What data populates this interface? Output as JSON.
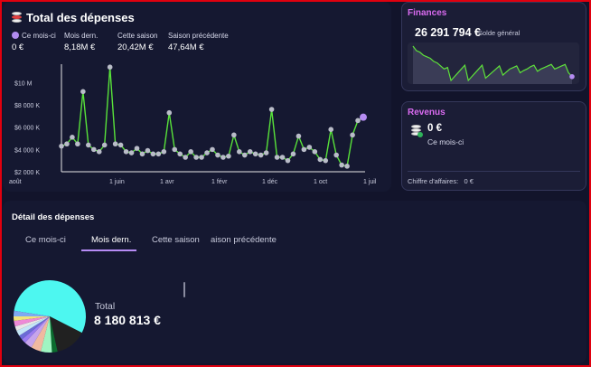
{
  "total": {
    "title": "Total des dépenses",
    "stats": [
      {
        "label": "Ce mois-ci",
        "value": "0 €"
      },
      {
        "label": "Mois dern.",
        "value": "8,18M €"
      },
      {
        "label": "Cette saison",
        "value": "20,42M €"
      },
      {
        "label": "Saison précédente",
        "value": "47,64M €"
      }
    ]
  },
  "chart_data": {
    "type": "line",
    "y_ticks": [
      "$10 M",
      "$8 000 K",
      "$6 000 K",
      "$4 000 K",
      "$2 000 K"
    ],
    "x_ticks": [
      "août",
      "1 juin",
      "1 avr",
      "1 févr",
      "1 déc",
      "1 oct",
      "1 juil"
    ],
    "ylim": [
      2000,
      11500
    ],
    "values": [
      4300,
      4500,
      5100,
      4500,
      9200,
      4400,
      4000,
      3800,
      4400,
      11400,
      4500,
      4400,
      3800,
      3700,
      4100,
      3600,
      3900,
      3600,
      3600,
      3800,
      7300,
      4000,
      3600,
      3300,
      3800,
      3300,
      3300,
      3700,
      4000,
      3500,
      3300,
      3400,
      5300,
      3800,
      3500,
      3800,
      3600,
      3500,
      3700,
      7600,
      3300,
      3300,
      3000,
      3600,
      5200,
      4000,
      4200,
      3800,
      3100,
      3000,
      5800,
      3500,
      2600,
      2500,
      5300,
      6600,
      6900
    ],
    "line_color": "#58e23a",
    "marker_color": "#b9bcc8",
    "last_marker_color": "#b58cf2"
  },
  "finances": {
    "title": "Finances",
    "amount": "26 291 794 €",
    "caption": "Solde général",
    "spark": [
      100,
      94,
      92,
      88,
      86,
      84,
      80,
      78,
      74,
      70,
      72,
      55,
      60,
      65,
      70,
      75,
      55,
      60,
      65,
      70,
      75,
      58,
      62,
      66,
      70,
      74,
      62,
      66,
      70,
      72,
      74,
      65,
      68,
      70,
      73,
      75,
      67,
      70,
      72,
      74,
      76,
      70,
      72,
      74,
      76,
      65,
      60
    ],
    "spark_color": "#5ee23a",
    "spark_marker_color": "#b58cf2"
  },
  "revenus": {
    "title": "Revenus",
    "amount": "0 €",
    "caption": "Ce mois-ci",
    "footer_label": "Chiffre d'affaires:",
    "footer_value": "0 €"
  },
  "detail": {
    "title": "Détail des dépenses",
    "tabs": [
      "Ce mois-ci",
      "Mois dern.",
      "Cette saison",
      "aison précédente"
    ],
    "active_tab": 1,
    "total_label": "Total",
    "total_value": "8 180 813 €",
    "pie": [
      {
        "value": 55,
        "color": "#4df7f0"
      },
      {
        "value": 14,
        "color": "#212121"
      },
      {
        "value": 2.5,
        "color": "#0b6b2e"
      },
      {
        "value": 5,
        "color": "#9ff5c2"
      },
      {
        "value": 4.5,
        "color": "#f0b9a0"
      },
      {
        "value": 3.5,
        "color": "#c6a4ec"
      },
      {
        "value": 2,
        "color": "#9a7cf2"
      },
      {
        "value": 2,
        "color": "#6b6bd6"
      },
      {
        "value": 2.5,
        "color": "#c3e6f7"
      },
      {
        "value": 2,
        "color": "#e7e7e7"
      },
      {
        "value": 2.5,
        "color": "#ee8ad6"
      },
      {
        "value": 2,
        "color": "#f2e47a"
      },
      {
        "value": 2.5,
        "color": "#7fa9f2"
      }
    ]
  }
}
